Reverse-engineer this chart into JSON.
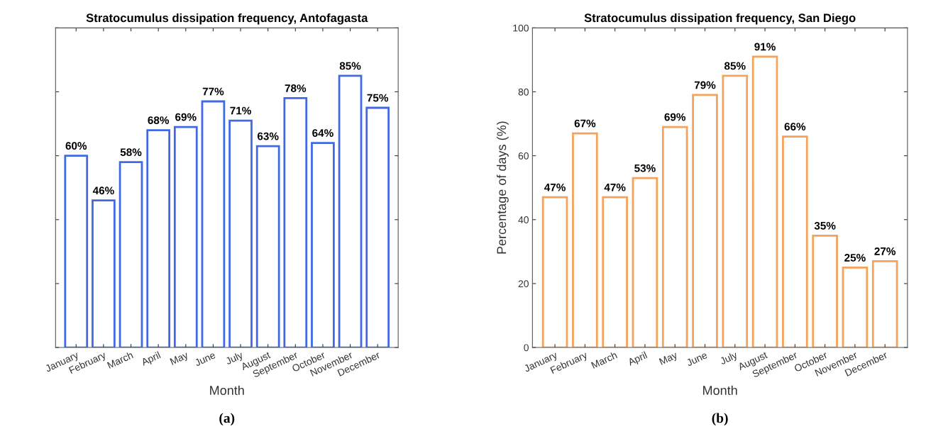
{
  "chart_data": [
    {
      "type": "bar",
      "title": "Stratocumulus dissipation frequency, Antofagasta",
      "xlabel": "Month",
      "categories": [
        "January",
        "February",
        "March",
        "April",
        "May",
        "June",
        "July",
        "August",
        "September",
        "October",
        "November",
        "December"
      ],
      "values": [
        60,
        46,
        58,
        68,
        69,
        77,
        71,
        63,
        78,
        64,
        85,
        75
      ],
      "value_labels": [
        "60%",
        "46%",
        "58%",
        "68%",
        "69%",
        "77%",
        "71%",
        "63%",
        "78%",
        "64%",
        "85%",
        "75%"
      ],
      "color": "#4169e6",
      "ylim": [
        0,
        100
      ],
      "yticks": [
        0,
        20,
        40,
        60,
        80,
        100
      ],
      "tick_labels": "x",
      "grid": false,
      "legend": false,
      "annotations": [
        "(a)"
      ]
    },
    {
      "type": "bar",
      "title": "Stratocumulus dissipation frequency, San Diego",
      "xlabel": "Month",
      "ylabel": "Percentage of days (%)",
      "categories": [
        "January",
        "February",
        "March",
        "April",
        "May",
        "June",
        "July",
        "August",
        "September",
        "October",
        "November",
        "December"
      ],
      "values": [
        47,
        67,
        47,
        53,
        69,
        79,
        85,
        91,
        66,
        35,
        25,
        27
      ],
      "value_labels": [
        "47%",
        "67%",
        "47%",
        "53%",
        "69%",
        "79%",
        "85%",
        "91%",
        "66%",
        "35%",
        "25%",
        "27%"
      ],
      "color": "#f5a35c",
      "ylim": [
        0,
        100
      ],
      "yticks": [
        0,
        20,
        40,
        60,
        80,
        100
      ],
      "grid": false,
      "legend": false,
      "annotations": [
        "(b)"
      ]
    }
  ]
}
